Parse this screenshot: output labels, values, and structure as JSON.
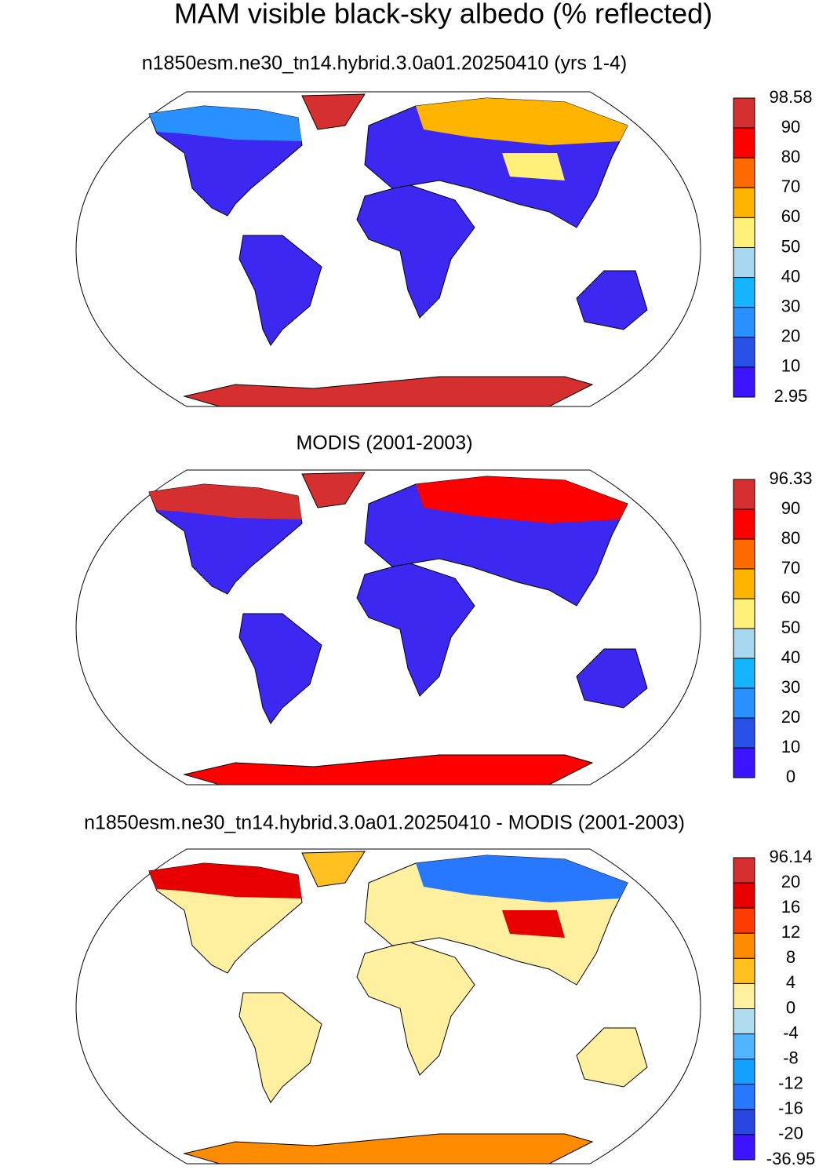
{
  "title": "MAM visible black-sky albedo (% reflected)",
  "panels": [
    {
      "title": "n1850esm.ne30_tn14.hybrid.3.0a01.20250410 (yrs 1-4)",
      "colorbar": {
        "levels": [
          98.58,
          90,
          80,
          70,
          60,
          50,
          40,
          30,
          20,
          10,
          2.95
        ],
        "colors": [
          "#d62f2f",
          "#ff0000",
          "#ff6a00",
          "#ffb400",
          "#fff07a",
          "#a8d8f0",
          "#14b4ff",
          "#2890ff",
          "#2850e6",
          "#3c14ff"
        ]
      }
    },
    {
      "title": "MODIS (2001-2003)",
      "colorbar": {
        "levels": [
          96.33,
          90,
          80,
          70,
          60,
          50,
          40,
          30,
          20,
          10,
          0
        ],
        "colors": [
          "#d62f2f",
          "#ff0000",
          "#ff6a00",
          "#ffb400",
          "#fff07a",
          "#a8d8f0",
          "#14b4ff",
          "#2890ff",
          "#2850e6",
          "#3c14ff"
        ]
      }
    },
    {
      "title": "n1850esm.ne30_tn14.hybrid.3.0a01.20250410 - MODIS (2001-2003)",
      "colorbar": {
        "levels": [
          96.14,
          20,
          16,
          12,
          8,
          4,
          0,
          -4,
          -8,
          -12,
          -16,
          -20,
          -36.95
        ],
        "colors": [
          "#d62f2f",
          "#e80000",
          "#ff3c00",
          "#ff8c00",
          "#ffc020",
          "#fff0a0",
          "#b0dcf0",
          "#50b4ff",
          "#14a0ff",
          "#2878ff",
          "#2846e0",
          "#3c14ff"
        ]
      }
    }
  ]
}
